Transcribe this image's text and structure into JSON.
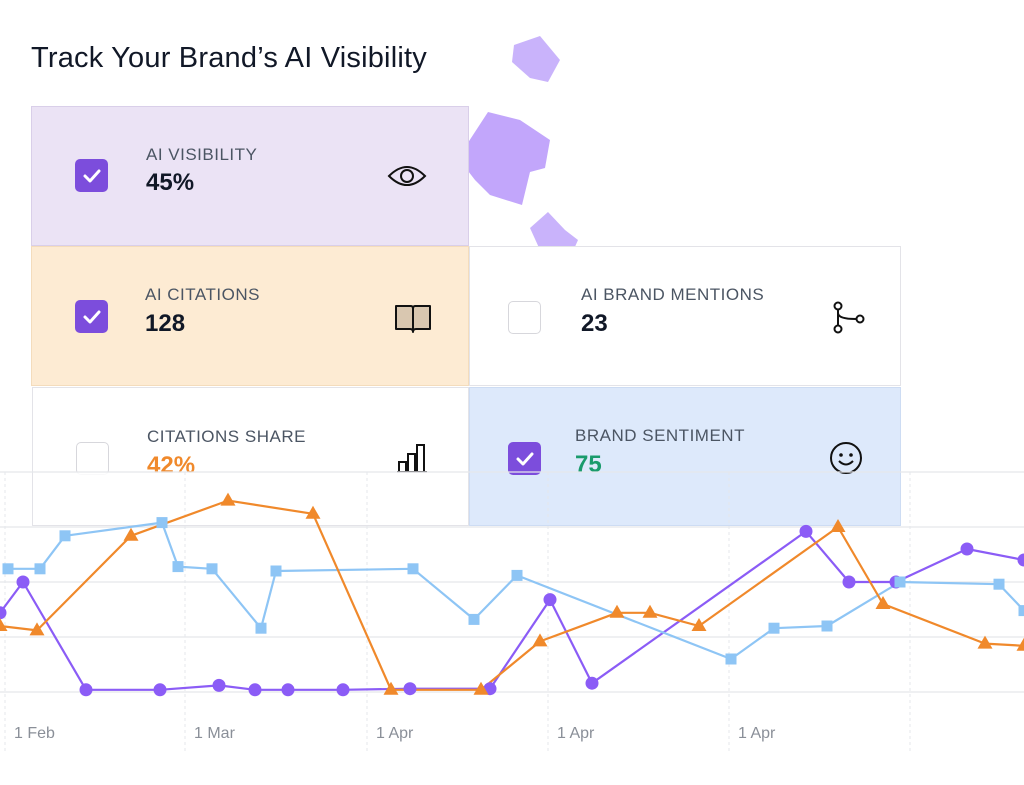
{
  "header": {
    "title": "Track Your Brand’s AI Visibility"
  },
  "cards": [
    {
      "label": "AI VISIBILITY",
      "value": "45%",
      "checked": true
    },
    {
      "label": "AI CITATIONS",
      "value": "128",
      "checked": true
    },
    {
      "label": "AI BRAND MENTIONS",
      "value": "23",
      "checked": false
    },
    {
      "label": "CITATIONS SHARE",
      "value": "42%",
      "checked": false
    },
    {
      "label": "BRAND SENTIMENT",
      "value": "75",
      "checked": true
    }
  ],
  "chart_data": {
    "type": "line",
    "xlim": [
      0,
      1024
    ],
    "ylim": [
      0,
      100
    ],
    "xticks": [
      {
        "value": 5,
        "label": "1 Feb"
      },
      {
        "value": 185,
        "label": "1 Mar"
      },
      {
        "value": 367,
        "label": "1 Apr"
      },
      {
        "value": 548,
        "label": "1 Apr"
      },
      {
        "value": 729,
        "label": "1 Apr"
      },
      {
        "value": 910,
        "label": ""
      }
    ],
    "yticks": [
      0,
      25,
      50,
      75,
      100
    ],
    "grid": true,
    "series": [
      {
        "name": "AI Visibility",
        "color": "#8b5cf6",
        "marker": "circle",
        "x": [
          0,
          23,
          86,
          160,
          219,
          255,
          288,
          343,
          410,
          490,
          550,
          592,
          806,
          849,
          896,
          967,
          1024
        ],
        "values": [
          36,
          50,
          1,
          1,
          3,
          1,
          1,
          1,
          1.5,
          1.5,
          42,
          4,
          73,
          50,
          50,
          65,
          60
        ]
      },
      {
        "name": "Brand Sentiment",
        "color": "#8ec5f5",
        "marker": "square",
        "x": [
          8,
          40,
          65,
          162,
          178,
          212,
          261,
          276,
          413,
          474,
          517,
          731,
          774,
          827,
          900,
          999,
          1024
        ],
        "values": [
          56,
          56,
          71,
          77,
          57,
          56,
          29,
          55,
          56,
          33,
          53,
          15,
          29,
          30,
          50,
          49,
          37
        ]
      },
      {
        "name": "AI Citations",
        "color": "#f0892b",
        "marker": "triangle",
        "x": [
          0,
          37,
          131,
          228,
          313,
          391,
          481,
          540,
          617,
          650,
          699,
          838,
          883,
          985,
          1024
        ],
        "values": [
          30,
          28,
          71,
          87,
          81,
          1,
          1,
          23,
          36,
          36,
          30,
          75,
          40,
          22,
          21
        ]
      }
    ]
  }
}
